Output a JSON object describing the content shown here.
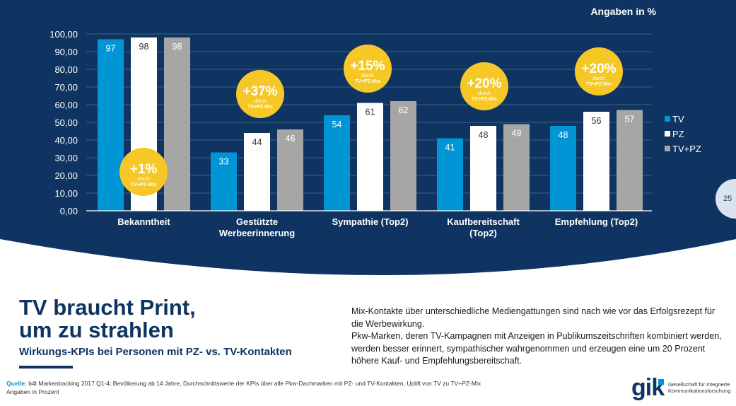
{
  "header": {
    "unit_label": "Angaben in %"
  },
  "page_number": "25",
  "chart_data": {
    "type": "bar",
    "ylim": [
      0,
      100
    ],
    "yticks": [
      "0,00",
      "10,00",
      "20,00",
      "30,00",
      "40,00",
      "50,00",
      "60,00",
      "70,00",
      "80,00",
      "90,00",
      "100,00"
    ],
    "categories": [
      "Bekanntheit",
      "Gestützte Werbeerinnerung",
      "Sympathie (Top2)",
      "Kaufbereitschaft (Top2)",
      "Empfehlung (Top2)"
    ],
    "series": [
      {
        "name": "TV",
        "color": "#0096d6",
        "values": [
          97,
          33,
          54,
          41,
          48
        ]
      },
      {
        "name": "PZ",
        "color": "#ffffff",
        "values": [
          98,
          44,
          61,
          48,
          56
        ]
      },
      {
        "name": "TV+PZ",
        "color": "#a6a6a6",
        "values": [
          98,
          46,
          62,
          49,
          57
        ]
      }
    ],
    "uplifts": [
      {
        "pct": "+1%",
        "line1": "durch",
        "line2": "TV+PZ-Mix"
      },
      {
        "pct": "+37%",
        "line1": "durch",
        "line2": "TV+PZ-Mix"
      },
      {
        "pct": "+15%",
        "line1": "durch",
        "line2": "TV+PZ-Mix"
      },
      {
        "pct": "+20%",
        "line1": "durch",
        "line2": "TV+PZ-Mix"
      },
      {
        "pct": "+20%",
        "line1": "durch",
        "line2": "TV+PZ-Mix"
      }
    ],
    "legend_position": "right",
    "grid": true
  },
  "footer": {
    "title": "TV braucht Print,\num zu strahlen",
    "subtitle": "Wirkungs-KPIs bei Personen mit PZ- vs. TV-Kontakten",
    "body_p1": "Mix-Kontakte über unterschiedliche Mediengattungen sind nach wie vor das Erfolgsrezept für die Werbewirkung.",
    "body_p2": "Pkw-Marken, deren TV-Kampagnen mit Anzeigen in Publikumszeitschriften kombiniert werden, werden besser erinnert, sympathischer wahrgenommen und erzeugen eine um 20 Prozent höhere Kauf- und Empfehlungsbereitschaft.",
    "source_label": "Quelle:",
    "source_text": "b4t Markentracking 2017 Q1-4; Bevölkerung ab 14 Jahre, Durchschnittswerte der KPIs über alle Pkw-Dachmarken mit PZ- und TV-Kontakten, Uplift von TV zu TV+PZ-Mix",
    "source_note": "Angaben in Prozent",
    "logo_text": "gik",
    "logo_sub": "Gesellschaft für integrierte Kommunikationsforschung"
  },
  "colors": {
    "navy": "#0f3462",
    "tv": "#0096d6",
    "tvpz": "#a6a6a6",
    "badge": "#f6c827"
  }
}
